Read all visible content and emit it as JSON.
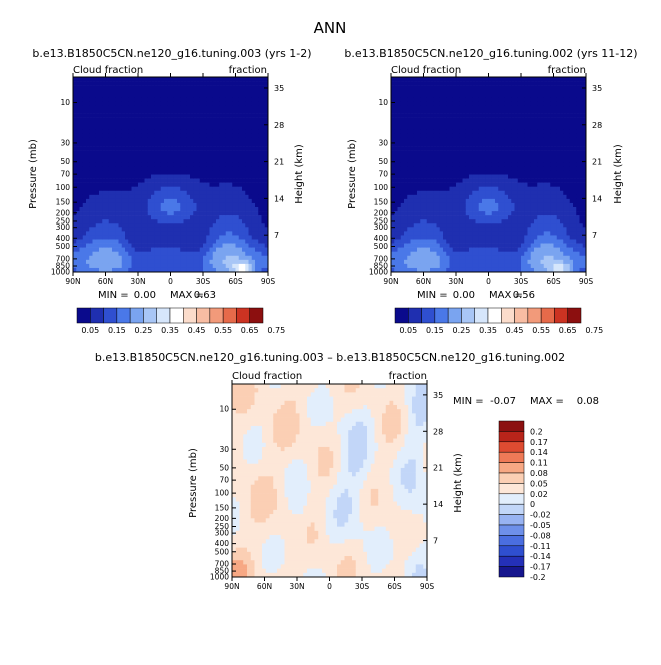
{
  "figure_title": "ANN",
  "colors": {
    "base_scale": [
      "#0a0a8c",
      "#1f2fb0",
      "#2f4fd0",
      "#4a78e8",
      "#7aa4f0",
      "#a8c6f6",
      "#d6e6fb",
      "#ffffff",
      "#fbdccb",
      "#f8bda3",
      "#f29a7a",
      "#e66a4a",
      "#cc3322",
      "#8c0f0f"
    ],
    "diff_scale": [
      "#16168e",
      "#2430b8",
      "#2f4fd0",
      "#4a6ee0",
      "#6e90ea",
      "#98b3f2",
      "#c2d6f8",
      "#e2eefc",
      "#fde7d8",
      "#fbcfb4",
      "#f7a884",
      "#ef7a57",
      "#de4b31",
      "#b8241a",
      "#8c1010"
    ]
  },
  "chart_data": [
    {
      "type": "heatmap",
      "title": "b.e13.B1850C5CN.ne120_g16.tuning.003 (yrs 1-2)",
      "left_title": "Cloud fraction",
      "right_title": "fraction",
      "ylabel": "Pressure (mb)",
      "y2label": "Height (km)",
      "x_ticks": [
        "90N",
        "60N",
        "30N",
        "0",
        "30S",
        "60S",
        "90S"
      ],
      "y_ticks": [
        "10",
        "30",
        "50",
        "70",
        "100",
        "150",
        "200",
        "250",
        "300",
        "400",
        "500",
        "700",
        "850",
        "1000"
      ],
      "y2_ticks": [
        "35",
        "28",
        "21",
        "14",
        "7"
      ],
      "min_label": "MIN =",
      "min_value": "0.00",
      "max_label": "MAX =",
      "max_value": "0.63",
      "colorbar_labels": [
        "0.05",
        "0.15",
        "0.25",
        "0.35",
        "0.45",
        "0.55",
        "0.65",
        "0.75"
      ]
    },
    {
      "type": "heatmap",
      "title": "b.e13.B1850C5CN.ne120_g16.tuning.002 (yrs 11-12)",
      "left_title": "Cloud fraction",
      "right_title": "fraction",
      "ylabel": "Pressure (mb)",
      "y2label": "Height (km)",
      "x_ticks": [
        "90N",
        "60N",
        "30N",
        "0",
        "30S",
        "60S",
        "90S"
      ],
      "y_ticks": [
        "10",
        "30",
        "50",
        "70",
        "100",
        "150",
        "200",
        "250",
        "300",
        "400",
        "500",
        "700",
        "850",
        "1000"
      ],
      "y2_ticks": [
        "35",
        "28",
        "21",
        "14",
        "7"
      ],
      "min_label": "MIN =",
      "min_value": "0.00",
      "max_label": "MAX =",
      "max_value": "0.56",
      "colorbar_labels": [
        "0.05",
        "0.15",
        "0.25",
        "0.35",
        "0.45",
        "0.55",
        "0.65",
        "0.75"
      ]
    },
    {
      "type": "heatmap",
      "title": "b.e13.B1850C5CN.ne120_g16.tuning.003 – b.e13.B1850C5CN.ne120_g16.tuning.002",
      "left_title": "Cloud fraction",
      "right_title": "fraction",
      "ylabel": "Pressure (mb)",
      "y2label": "Height (km)",
      "x_ticks": [
        "90N",
        "60N",
        "30N",
        "0",
        "30S",
        "60S",
        "90S"
      ],
      "y_ticks": [
        "10",
        "30",
        "50",
        "70",
        "100",
        "150",
        "200",
        "250",
        "300",
        "400",
        "500",
        "700",
        "850",
        "1000"
      ],
      "y2_ticks": [
        "35",
        "28",
        "21",
        "14",
        "7"
      ],
      "min_label": "MIN =",
      "min_value": "-0.07",
      "max_label": "MAX =",
      "max_value": "0.08",
      "colorbar_labels": [
        "0.2",
        "0.17",
        "0.14",
        "0.11",
        "0.08",
        "0.05",
        "0.02",
        "0",
        "-0.02",
        "-0.05",
        "-0.08",
        "-0.11",
        "-0.14",
        "-0.17",
        "-0.2"
      ]
    }
  ]
}
